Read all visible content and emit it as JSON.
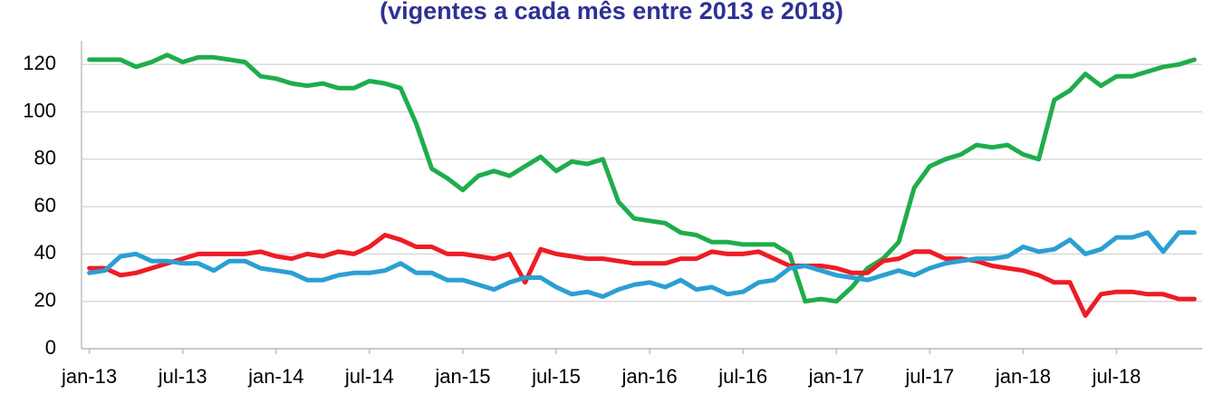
{
  "chart_data": {
    "type": "line",
    "title": "(vigentes a cada mês entre 2013 e 2018)",
    "categories": [
      "jan-13",
      null,
      null,
      null,
      null,
      null,
      "jul-13",
      null,
      null,
      null,
      null,
      null,
      "jan-14",
      null,
      null,
      null,
      null,
      null,
      "jul-14",
      null,
      null,
      null,
      null,
      null,
      "jan-15",
      null,
      null,
      null,
      null,
      null,
      "jul-15",
      null,
      null,
      null,
      null,
      null,
      "jan-16",
      null,
      null,
      null,
      null,
      null,
      "jul-16",
      null,
      null,
      null,
      null,
      null,
      "jan-17",
      null,
      null,
      null,
      null,
      null,
      "jul-17",
      null,
      null,
      null,
      null,
      null,
      "jan-18",
      null,
      null,
      null,
      null,
      null,
      "jul-18",
      null,
      null,
      null,
      null,
      null
    ],
    "series": [
      {
        "color": "#1fad4b",
        "values": [
          122,
          122,
          122,
          119,
          121,
          124,
          121,
          123,
          123,
          122,
          121,
          115,
          114,
          112,
          111,
          112,
          110,
          110,
          113,
          112,
          110,
          95,
          76,
          72,
          67,
          73,
          75,
          73,
          77,
          81,
          75,
          79,
          78,
          80,
          62,
          55,
          54,
          53,
          49,
          48,
          45,
          45,
          44,
          44,
          44,
          40,
          20,
          21,
          20,
          26,
          34,
          38,
          45,
          68,
          77,
          80,
          82,
          86,
          85,
          86,
          82,
          80,
          105,
          109,
          116,
          111,
          115,
          115,
          117,
          119,
          120,
          122
        ]
      },
      {
        "color": "#ee1c25",
        "values": [
          34,
          34,
          31,
          32,
          34,
          36,
          38,
          40,
          40,
          40,
          40,
          41,
          39,
          38,
          40,
          39,
          41,
          40,
          43,
          48,
          46,
          43,
          43,
          40,
          40,
          39,
          38,
          40,
          28,
          42,
          40,
          39,
          38,
          38,
          37,
          36,
          36,
          36,
          38,
          38,
          41,
          40,
          40,
          41,
          38,
          35,
          35,
          35,
          34,
          32,
          32,
          37,
          38,
          41,
          41,
          38,
          38,
          37,
          35,
          34,
          33,
          31,
          28,
          28,
          14,
          23,
          24,
          24,
          23,
          23,
          21,
          21
        ]
      },
      {
        "color": "#2b9fd3",
        "values": [
          32,
          33,
          39,
          40,
          37,
          37,
          36,
          36,
          33,
          37,
          37,
          34,
          33,
          32,
          29,
          29,
          31,
          32,
          32,
          33,
          36,
          32,
          32,
          29,
          29,
          27,
          25,
          28,
          30,
          30,
          26,
          23,
          24,
          22,
          25,
          27,
          28,
          26,
          29,
          25,
          26,
          23,
          24,
          28,
          29,
          34,
          35,
          33,
          31,
          30,
          29,
          31,
          33,
          31,
          34,
          36,
          37,
          38,
          38,
          39,
          43,
          41,
          42,
          46,
          40,
          42,
          47,
          47,
          49,
          41,
          49,
          49
        ]
      }
    ],
    "ylim": [
      0,
      130
    ],
    "yticks": [
      0,
      20,
      40,
      60,
      80,
      100,
      120
    ],
    "grid": true
  }
}
